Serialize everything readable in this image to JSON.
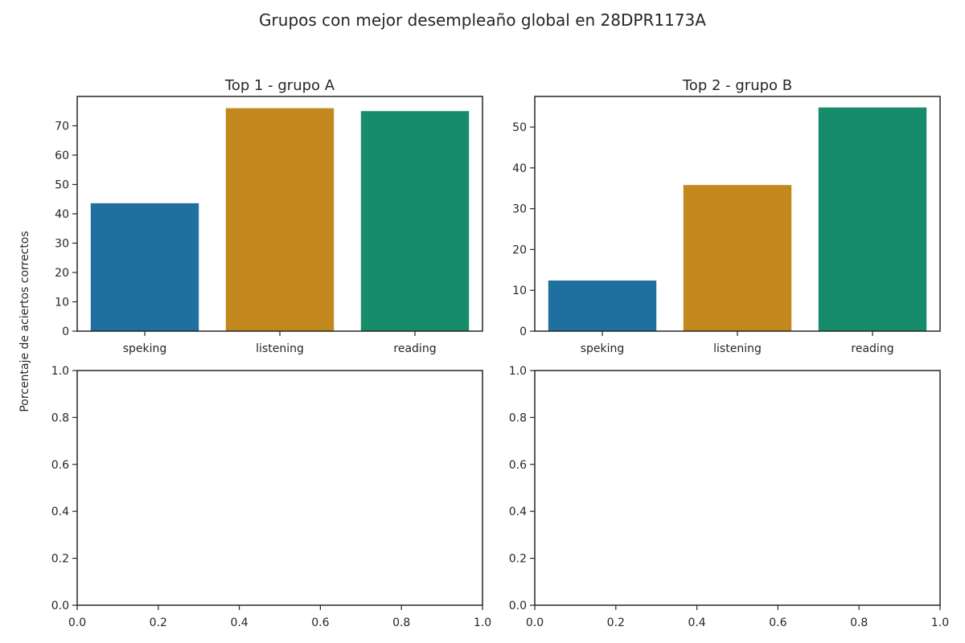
{
  "figure": {
    "suptitle": "Grupos con mejor desempleaño global en 28DPR1173A",
    "ylabel": "Porcentaje de aciertos correctos"
  },
  "chart_data": [
    {
      "type": "bar",
      "title": "Top  1 - grupo A",
      "categories": [
        "speking",
        "listening",
        "reading"
      ],
      "values": [
        43.6,
        76.0,
        75.0
      ],
      "colors": [
        "#1f6f9f",
        "#c2881e",
        "#168c6a"
      ],
      "ylim": [
        0,
        80
      ],
      "yticks": [
        "0",
        "10",
        "20",
        "30",
        "40",
        "50",
        "60",
        "70"
      ],
      "ytick_values": [
        0,
        10,
        20,
        30,
        40,
        50,
        60,
        70
      ],
      "xlim": null,
      "grid": false
    },
    {
      "type": "bar",
      "title": "Top  2 - grupo B",
      "categories": [
        "speking",
        "listening",
        "reading"
      ],
      "values": [
        12.4,
        35.8,
        54.8
      ],
      "colors": [
        "#1f6f9f",
        "#c2881e",
        "#168c6a"
      ],
      "ylim": [
        0,
        57.5
      ],
      "yticks": [
        "0",
        "10",
        "20",
        "30",
        "40",
        "50"
      ],
      "ytick_values": [
        0,
        10,
        20,
        30,
        40,
        50
      ],
      "grid": false
    },
    {
      "type": "bar",
      "title": "",
      "categories": [],
      "values": [],
      "xlim": [
        0,
        1
      ],
      "ylim": [
        0,
        1
      ],
      "xticks": [
        "0.0",
        "0.2",
        "0.4",
        "0.6",
        "0.8",
        "1.0"
      ],
      "xtick_values": [
        0,
        0.2,
        0.4,
        0.6,
        0.8,
        1.0
      ],
      "yticks": [
        "0.0",
        "0.2",
        "0.4",
        "0.6",
        "0.8",
        "1.0"
      ],
      "ytick_values": [
        0,
        0.2,
        0.4,
        0.6,
        0.8,
        1.0
      ],
      "grid": false
    },
    {
      "type": "bar",
      "title": "",
      "categories": [],
      "values": [],
      "xlim": [
        0,
        1
      ],
      "ylim": [
        0,
        1
      ],
      "xticks": [
        "0.0",
        "0.2",
        "0.4",
        "0.6",
        "0.8",
        "1.0"
      ],
      "xtick_values": [
        0,
        0.2,
        0.4,
        0.6,
        0.8,
        1.0
      ],
      "yticks": [
        "0.0",
        "0.2",
        "0.4",
        "0.6",
        "0.8",
        "1.0"
      ],
      "ytick_values": [
        0,
        0.2,
        0.4,
        0.6,
        0.8,
        1.0
      ],
      "grid": false
    }
  ]
}
